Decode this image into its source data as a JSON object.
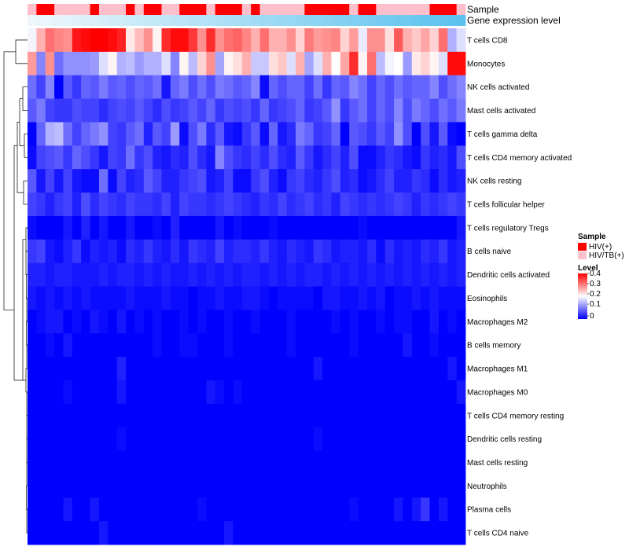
{
  "chart_data": {
    "type": "heatmap",
    "annotation_rows": [
      "Sample",
      "Gene expression level"
    ],
    "sample_groups": [
      "HIV(+)",
      "HIV/TB(+)"
    ],
    "sample_annotation": [
      1,
      0,
      0,
      1,
      1,
      1,
      1,
      0,
      1,
      1,
      1,
      0,
      1,
      0,
      0,
      1,
      1,
      0,
      0,
      0,
      1,
      0,
      0,
      0,
      1,
      0,
      1,
      1,
      1,
      1,
      1,
      0,
      0,
      0,
      0,
      0,
      1,
      0,
      0,
      1,
      1,
      1,
      1,
      1,
      1,
      0,
      0,
      0,
      1
    ],
    "rows": [
      "T cells CD8",
      "Monocytes",
      "NK cells activated",
      "Mast cells activated",
      "T cells gamma delta",
      "T cells CD4 memory activated",
      "NK cells resting",
      "T cells follicular helper",
      "T cells regulatory  Tregs",
      "B cells naive",
      "Dendritic cells activated",
      "Eosinophils",
      "Macrophages M2",
      "B cells memory",
      "Macrophages M1",
      "Macrophages M0",
      "T cells CD4 memory resting",
      "Dendritic cells resting",
      "Mast cells resting",
      "Neutrophils",
      "Plasma cells",
      "T cells CD4 naive"
    ],
    "n_columns": 49,
    "values": [
      [
        0.22,
        0.3,
        0.36,
        0.34,
        0.33,
        0.44,
        0.45,
        0.46,
        0.46,
        0.45,
        0.43,
        0.25,
        0.29,
        0.33,
        0.24,
        0.42,
        0.45,
        0.45,
        0.41,
        0.33,
        0.42,
        0.33,
        0.36,
        0.37,
        0.34,
        0.3,
        0.36,
        0.3,
        0.3,
        0.33,
        0.27,
        0.35,
        0.32,
        0.33,
        0.34,
        0.27,
        0.32,
        0.21,
        0.33,
        0.33,
        0.26,
        0.38,
        0.3,
        0.28,
        0.31,
        0.27,
        0.36,
        0.16,
        0.2
      ],
      [
        0.32,
        0.12,
        0.33,
        0.1,
        0.13,
        0.13,
        0.13,
        0.14,
        0.2,
        0.24,
        0.16,
        0.17,
        0.14,
        0.16,
        0.16,
        0.2,
        0.12,
        0.24,
        0.17,
        0.27,
        0.33,
        0.15,
        0.24,
        0.26,
        0.3,
        0.18,
        0.18,
        0.26,
        0.28,
        0.2,
        0.3,
        0.15,
        0.2,
        0.3,
        0.23,
        0.31,
        0.42,
        0.24,
        0.36,
        0.17,
        0.22,
        0.23,
        0.14,
        0.25,
        0.27,
        0.24,
        0.2,
        0.45,
        0.45
      ],
      [
        0.1,
        0.06,
        0.12,
        0.0,
        0.08,
        0.05,
        0.09,
        0.08,
        0.11,
        0.08,
        0.09,
        0.07,
        0.09,
        0.08,
        0.1,
        0.02,
        0.09,
        0.11,
        0.07,
        0.1,
        0.07,
        0.11,
        0.1,
        0.08,
        0.09,
        0.12,
        0.01,
        0.09,
        0.07,
        0.09,
        0.09,
        0.06,
        0.1,
        0.05,
        0.09,
        0.08,
        0.12,
        0.1,
        0.06,
        0.09,
        0.07,
        0.1,
        0.08,
        0.09,
        0.09,
        0.12,
        0.07,
        0.1,
        0.12
      ],
      [
        0.08,
        0.11,
        0.06,
        0.05,
        0.05,
        0.07,
        0.06,
        0.06,
        0.04,
        0.06,
        0.07,
        0.06,
        0.08,
        0.06,
        0.04,
        0.07,
        0.05,
        0.06,
        0.08,
        0.06,
        0.09,
        0.05,
        0.07,
        0.06,
        0.07,
        0.05,
        0.09,
        0.05,
        0.06,
        0.07,
        0.09,
        0.05,
        0.06,
        0.08,
        0.13,
        0.05,
        0.08,
        0.1,
        0.06,
        0.09,
        0.07,
        0.12,
        0.07,
        0.11,
        0.09,
        0.07,
        0.1,
        0.08,
        0.11
      ],
      [
        0.0,
        0.09,
        0.16,
        0.17,
        0.1,
        0.06,
        0.09,
        0.11,
        0.13,
        0.06,
        0.05,
        0.08,
        0.1,
        0.03,
        0.08,
        0.06,
        0.14,
        0.01,
        0.07,
        0.11,
        0.04,
        0.08,
        0.02,
        0.01,
        0.05,
        0.08,
        0.01,
        0.09,
        0.02,
        0.04,
        0.11,
        0.09,
        0.05,
        0.06,
        0.09,
        0.0,
        0.08,
        0.07,
        0.05,
        0.08,
        0.06,
        0.13,
        0.07,
        0.0,
        0.07,
        0.02,
        0.08,
        0.01,
        0.0
      ],
      [
        0.01,
        0.06,
        0.07,
        0.08,
        0.05,
        0.09,
        0.07,
        0.05,
        0.02,
        0.06,
        0.05,
        0.1,
        0.05,
        0.07,
        0.03,
        0.02,
        0.04,
        0.03,
        0.07,
        0.04,
        0.02,
        0.12,
        0.07,
        0.05,
        0.04,
        0.06,
        0.04,
        0.07,
        0.04,
        0.03,
        0.08,
        0.05,
        0.02,
        0.04,
        0.06,
        0.03,
        0.07,
        0.01,
        0.01,
        0.03,
        0.05,
        0.04,
        0.02,
        0.01,
        0.05,
        0.03,
        0.04,
        0.02,
        0.07
      ],
      [
        0.08,
        0.02,
        0.06,
        0.02,
        0.06,
        0.02,
        0.01,
        0.01,
        0.1,
        0.01,
        0.06,
        0.03,
        0.04,
        0.08,
        0.06,
        0.03,
        0.03,
        0.05,
        0.06,
        0.07,
        0.02,
        0.03,
        0.06,
        0.01,
        0.01,
        0.05,
        0.07,
        0.03,
        0.01,
        0.05,
        0.06,
        0.04,
        0.03,
        0.05,
        0.07,
        0.03,
        0.04,
        0.01,
        0.02,
        0.04,
        0.06,
        0.03,
        0.03,
        0.05,
        0.04,
        0.01,
        0.04,
        0.02,
        0.03
      ],
      [
        0.06,
        0.05,
        0.03,
        0.05,
        0.06,
        0.03,
        0.07,
        0.04,
        0.06,
        0.05,
        0.04,
        0.06,
        0.05,
        0.05,
        0.04,
        0.06,
        0.03,
        0.06,
        0.05,
        0.05,
        0.04,
        0.05,
        0.06,
        0.05,
        0.04,
        0.03,
        0.05,
        0.04,
        0.06,
        0.04,
        0.05,
        0.06,
        0.04,
        0.05,
        0.03,
        0.06,
        0.05,
        0.04,
        0.05,
        0.04,
        0.05,
        0.06,
        0.05,
        0.03,
        0.05,
        0.04,
        0.05,
        0.06,
        0.05
      ],
      [
        0.01,
        0.0,
        0.0,
        0.0,
        0.02,
        0.0,
        0.03,
        0.0,
        0.02,
        0.0,
        0.0,
        0.02,
        0.0,
        0.0,
        0.01,
        0.0,
        0.03,
        0.0,
        0.0,
        0.0,
        0.0,
        0.02,
        0.0,
        0.01,
        0.0,
        0.0,
        0.0,
        0.01,
        0.0,
        0.0,
        0.0,
        0.0,
        0.0,
        0.0,
        0.0,
        0.0,
        0.0,
        0.01,
        0.0,
        0.0,
        0.0,
        0.0,
        0.0,
        0.0,
        0.0,
        0.0,
        0.0,
        0.0,
        0.02
      ],
      [
        0.05,
        0.06,
        0.02,
        0.01,
        0.03,
        0.05,
        0.01,
        0.03,
        0.02,
        0.03,
        0.01,
        0.04,
        0.03,
        0.05,
        0.03,
        0.02,
        0.04,
        0.02,
        0.05,
        0.04,
        0.03,
        0.06,
        0.03,
        0.04,
        0.04,
        0.03,
        0.05,
        0.03,
        0.02,
        0.04,
        0.03,
        0.02,
        0.05,
        0.04,
        0.02,
        0.03,
        0.03,
        0.02,
        0.04,
        0.01,
        0.04,
        0.02,
        0.03,
        0.02,
        0.04,
        0.03,
        0.05,
        0.02,
        0.03
      ],
      [
        0.03,
        0.03,
        0.02,
        0.03,
        0.03,
        0.02,
        0.02,
        0.02,
        0.03,
        0.02,
        0.03,
        0.03,
        0.02,
        0.03,
        0.02,
        0.03,
        0.02,
        0.02,
        0.03,
        0.02,
        0.03,
        0.02,
        0.03,
        0.02,
        0.03,
        0.03,
        0.02,
        0.03,
        0.02,
        0.03,
        0.02,
        0.03,
        0.03,
        0.02,
        0.03,
        0.02,
        0.03,
        0.02,
        0.03,
        0.02,
        0.03,
        0.02,
        0.03,
        0.02,
        0.03,
        0.02,
        0.03,
        0.02,
        0.03
      ],
      [
        0.02,
        0.01,
        0.02,
        0.01,
        0.02,
        0.01,
        0.02,
        0.01,
        0.01,
        0.01,
        0.01,
        0.02,
        0.01,
        0.01,
        0.01,
        0.02,
        0.01,
        0.01,
        0.0,
        0.01,
        0.01,
        0.02,
        0.01,
        0.01,
        0.02,
        0.02,
        0.01,
        0.0,
        0.01,
        0.01,
        0.01,
        0.01,
        0.0,
        0.02,
        0.02,
        0.01,
        0.01,
        0.02,
        0.01,
        0.02,
        0.0,
        0.01,
        0.01,
        0.02,
        0.01,
        0.02,
        0.01,
        0.01,
        0.01
      ],
      [
        0.0,
        0.01,
        0.02,
        0.02,
        0.0,
        0.01,
        0.0,
        0.02,
        0.01,
        0.0,
        0.02,
        0.0,
        0.01,
        0.0,
        0.01,
        0.0,
        0.0,
        0.01,
        0.0,
        0.01,
        0.0,
        0.0,
        0.01,
        0.0,
        0.0,
        0.01,
        0.0,
        0.0,
        0.0,
        0.01,
        0.0,
        0.0,
        0.0,
        0.0,
        0.01,
        0.0,
        0.01,
        0.0,
        0.0,
        0.01,
        0.0,
        0.01,
        0.01,
        0.0,
        0.0,
        0.02,
        0.0,
        0.01,
        0.0
      ],
      [
        0.0,
        0.0,
        0.01,
        0.0,
        0.02,
        0.0,
        0.0,
        0.0,
        0.0,
        0.0,
        0.0,
        0.0,
        0.0,
        0.0,
        0.01,
        0.0,
        0.0,
        0.01,
        0.01,
        0.0,
        0.0,
        0.0,
        0.01,
        0.0,
        0.0,
        0.0,
        0.0,
        0.0,
        0.0,
        0.01,
        0.0,
        0.0,
        0.0,
        0.0,
        0.0,
        0.0,
        0.01,
        0.0,
        0.0,
        0.0,
        0.0,
        0.0,
        0.02,
        0.0,
        0.0,
        0.01,
        0.0,
        0.0,
        0.0
      ],
      [
        0.0,
        0.0,
        0.0,
        0.0,
        0.0,
        0.0,
        0.0,
        0.0,
        0.0,
        0.0,
        0.03,
        0.0,
        0.0,
        0.0,
        0.0,
        0.0,
        0.0,
        0.0,
        0.0,
        0.0,
        0.0,
        0.0,
        0.0,
        0.0,
        0.0,
        0.0,
        0.0,
        0.0,
        0.0,
        0.0,
        0.0,
        0.0,
        0.02,
        0.0,
        0.0,
        0.0,
        0.0,
        0.0,
        0.0,
        0.0,
        0.0,
        0.0,
        0.0,
        0.0,
        0.0,
        0.0,
        0.0,
        0.02,
        0.0
      ],
      [
        0.0,
        0.0,
        0.0,
        0.0,
        0.01,
        0.0,
        0.0,
        0.0,
        0.0,
        0.0,
        0.02,
        0.0,
        0.0,
        0.0,
        0.0,
        0.0,
        0.0,
        0.0,
        0.0,
        0.0,
        0.02,
        0.01,
        0.0,
        0.01,
        0.0,
        0.0,
        0.0,
        0.0,
        0.0,
        0.0,
        0.0,
        0.0,
        0.0,
        0.0,
        0.0,
        0.0,
        0.0,
        0.0,
        0.0,
        0.0,
        0.0,
        0.0,
        0.0,
        0.0,
        0.0,
        0.0,
        0.0,
        0.0,
        0.02
      ],
      [
        0,
        0,
        0,
        0,
        0,
        0,
        0,
        0,
        0,
        0,
        0,
        0,
        0,
        0,
        0,
        0,
        0,
        0,
        0,
        0,
        0,
        0,
        0,
        0,
        0,
        0,
        0,
        0,
        0,
        0,
        0,
        0,
        0,
        0,
        0,
        0,
        0,
        0,
        0,
        0,
        0,
        0,
        0,
        0,
        0,
        0,
        0,
        0,
        0
      ],
      [
        0,
        0,
        0,
        0,
        0,
        0,
        0,
        0,
        0,
        0,
        0.01,
        0,
        0,
        0,
        0,
        0,
        0,
        0,
        0,
        0,
        0,
        0,
        0,
        0,
        0,
        0,
        0,
        0,
        0,
        0,
        0,
        0,
        0.01,
        0,
        0,
        0,
        0,
        0,
        0,
        0,
        0,
        0,
        0,
        0,
        0,
        0,
        0,
        0,
        0
      ],
      [
        0,
        0,
        0,
        0,
        0,
        0,
        0,
        0,
        0,
        0,
        0,
        0,
        0,
        0,
        0,
        0,
        0,
        0,
        0,
        0,
        0,
        0,
        0,
        0,
        0,
        0,
        0,
        0,
        0,
        0,
        0,
        0,
        0,
        0,
        0,
        0,
        0,
        0,
        0,
        0,
        0,
        0,
        0,
        0,
        0,
        0,
        0,
        0,
        0
      ],
      [
        0,
        0,
        0,
        0,
        0,
        0,
        0,
        0,
        0,
        0,
        0,
        0,
        0,
        0,
        0,
        0,
        0,
        0,
        0,
        0,
        0,
        0,
        0,
        0,
        0,
        0,
        0,
        0,
        0,
        0,
        0,
        0,
        0,
        0,
        0,
        0,
        0,
        0,
        0,
        0,
        0,
        0,
        0,
        0,
        0,
        0,
        0,
        0,
        0
      ],
      [
        0.0,
        0.0,
        0.0,
        0.0,
        0.02,
        0.0,
        0.0,
        0.02,
        0.0,
        0.0,
        0.0,
        0.0,
        0.0,
        0.0,
        0.0,
        0.0,
        0.0,
        0.0,
        0.0,
        0.01,
        0.0,
        0.0,
        0.0,
        0.0,
        0.0,
        0.0,
        0.0,
        0.0,
        0.0,
        0.0,
        0.0,
        0.0,
        0.0,
        0.0,
        0.0,
        0.0,
        0.01,
        0.0,
        0.0,
        0.0,
        0.0,
        0.02,
        0.0,
        0.02,
        0.05,
        0.0,
        0.02,
        0.0,
        0.0
      ],
      [
        0.0,
        0.0,
        0.0,
        0.0,
        0.0,
        0.0,
        0.0,
        0.0,
        0.02,
        0.0,
        0.0,
        0.0,
        0.0,
        0.0,
        0.0,
        0.0,
        0.0,
        0.0,
        0.0,
        0.0,
        0.0,
        0.0,
        0.02,
        0.0,
        0.0,
        0.0,
        0.0,
        0.0,
        0.0,
        0.0,
        0.0,
        0.0,
        0.0,
        0.0,
        0.0,
        0.0,
        0.0,
        0.0,
        0.0,
        0.0,
        0.0,
        0.0,
        0.0,
        0.0,
        0.0,
        0.0,
        0.0,
        0.0,
        0.0
      ]
    ],
    "color_scale": {
      "low": "#0000ff",
      "mid": "#ffffff",
      "high": "#ff0000",
      "domain": [
        0,
        0.23,
        0.46
      ]
    },
    "sample_colors": {
      "HIV(+)": "#ff0000",
      "HIV/TB(+)": "#ffc0cb"
    },
    "expression_gradient": [
      "#eef7fc",
      "#5bc2ee"
    ],
    "legend": {
      "sample_title": "Sample",
      "items": [
        "HIV(+)",
        "HIV/TB(+)"
      ],
      "level_title": "Level",
      "ticks": [
        "0.4",
        "0.3",
        "0.2",
        "0.1",
        "0"
      ]
    }
  }
}
